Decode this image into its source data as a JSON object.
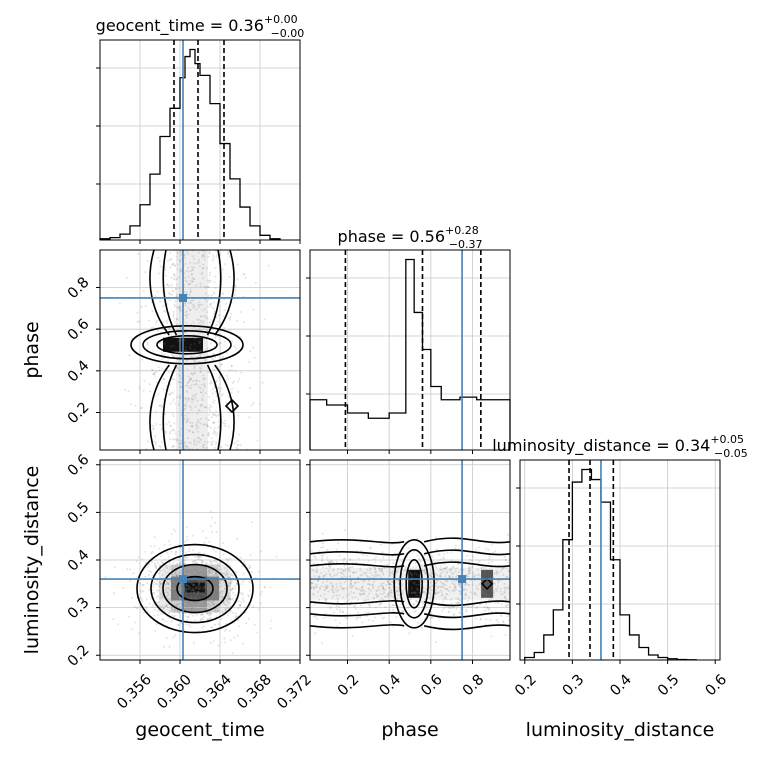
{
  "chart_data": {
    "type": "corner",
    "parameters": [
      "geocent_time",
      "phase",
      "luminosity_distance"
    ],
    "titles": {
      "geocent_time": {
        "prefix": "geocent_time = ",
        "median": "0.36",
        "plus": "+0.00",
        "minus": "−0.00"
      },
      "phase": {
        "prefix": "phase = ",
        "median": "0.56",
        "plus": "+0.28",
        "minus": "−0.37"
      },
      "luminosity_distance": {
        "prefix": "luminosity_distance = ",
        "median": "0.34",
        "plus": "+0.05",
        "minus": "−0.05"
      }
    },
    "axis_labels": {
      "geocent_time": "geocent_time",
      "phase": "phase",
      "luminosity_distance": "luminosity_distance"
    },
    "ranges": {
      "geocent_time": [
        0.352,
        0.372
      ],
      "phase": [
        0.02,
        0.98
      ],
      "luminosity_distance": [
        0.19,
        0.61
      ]
    },
    "ticks": {
      "geocent_time": {
        "values": [
          0.356,
          0.36,
          0.364,
          0.368,
          0.372
        ],
        "labels": [
          "0.356",
          "0.360",
          "0.364",
          "0.368",
          "0.372"
        ]
      },
      "phase": {
        "values": [
          0.2,
          0.4,
          0.6,
          0.8
        ],
        "labels": [
          "0.2",
          "0.4",
          "0.6",
          "0.8"
        ]
      },
      "luminosity_distance": {
        "values": [
          0.2,
          0.3,
          0.4,
          0.5,
          0.6
        ],
        "labels": [
          "0.2",
          "0.3",
          "0.4",
          "0.5",
          "0.6"
        ]
      }
    },
    "truths": {
      "geocent_time": 0.3603,
      "phase": 0.75,
      "luminosity_distance": 0.36
    },
    "quantiles": {
      "geocent_time": [
        0.3594,
        0.3618,
        0.3644
      ],
      "phase": [
        0.19,
        0.56,
        0.84
      ],
      "luminosity_distance": [
        0.293,
        0.337,
        0.386
      ]
    },
    "histograms": {
      "geocent_time": {
        "edges": [
          0.352,
          0.353,
          0.354,
          0.355,
          0.356,
          0.357,
          0.358,
          0.359,
          0.36,
          0.3605,
          0.361,
          0.3615,
          0.362,
          0.363,
          0.364,
          0.365,
          0.366,
          0.367,
          0.368,
          0.369,
          0.37
        ],
        "counts": [
          0.5,
          1,
          2.5,
          6,
          15,
          28,
          44,
          56,
          69,
          78,
          81,
          75,
          70,
          58,
          41,
          26,
          14,
          6,
          2,
          0.5
        ]
      },
      "phase": {
        "edges": [
          0.02,
          0.1,
          0.2,
          0.3,
          0.4,
          0.48,
          0.52,
          0.56,
          0.6,
          0.65,
          0.74,
          0.82,
          0.98
        ],
        "counts": [
          19,
          17,
          14,
          12,
          14,
          72,
          52,
          38,
          24,
          19,
          20,
          19
        ]
      },
      "luminosity_distance": {
        "edges": [
          0.2,
          0.22,
          0.24,
          0.26,
          0.28,
          0.3,
          0.32,
          0.34,
          0.36,
          0.38,
          0.4,
          0.42,
          0.44,
          0.46,
          0.48,
          0.5,
          0.52,
          0.54,
          0.56
        ],
        "counts": [
          1,
          3,
          10,
          20,
          48,
          71,
          76,
          72,
          63,
          40,
          18,
          10,
          5,
          2,
          1,
          0.5,
          0.2,
          0.1
        ]
      }
    },
    "density_cores": {
      "geocent_time|phase": [
        {
          "x": 0.3603,
          "y": 0.525,
          "level": "darkest"
        }
      ],
      "geocent_time|luminosity_distance": [
        {
          "x": 0.3615,
          "y": 0.34,
          "level": "darkest"
        }
      ],
      "phase|luminosity_distance": [
        {
          "x": 0.52,
          "y": 0.35,
          "level": "darkest"
        },
        {
          "x": 0.87,
          "y": 0.35,
          "level": "medium"
        }
      ]
    },
    "grid": true
  }
}
